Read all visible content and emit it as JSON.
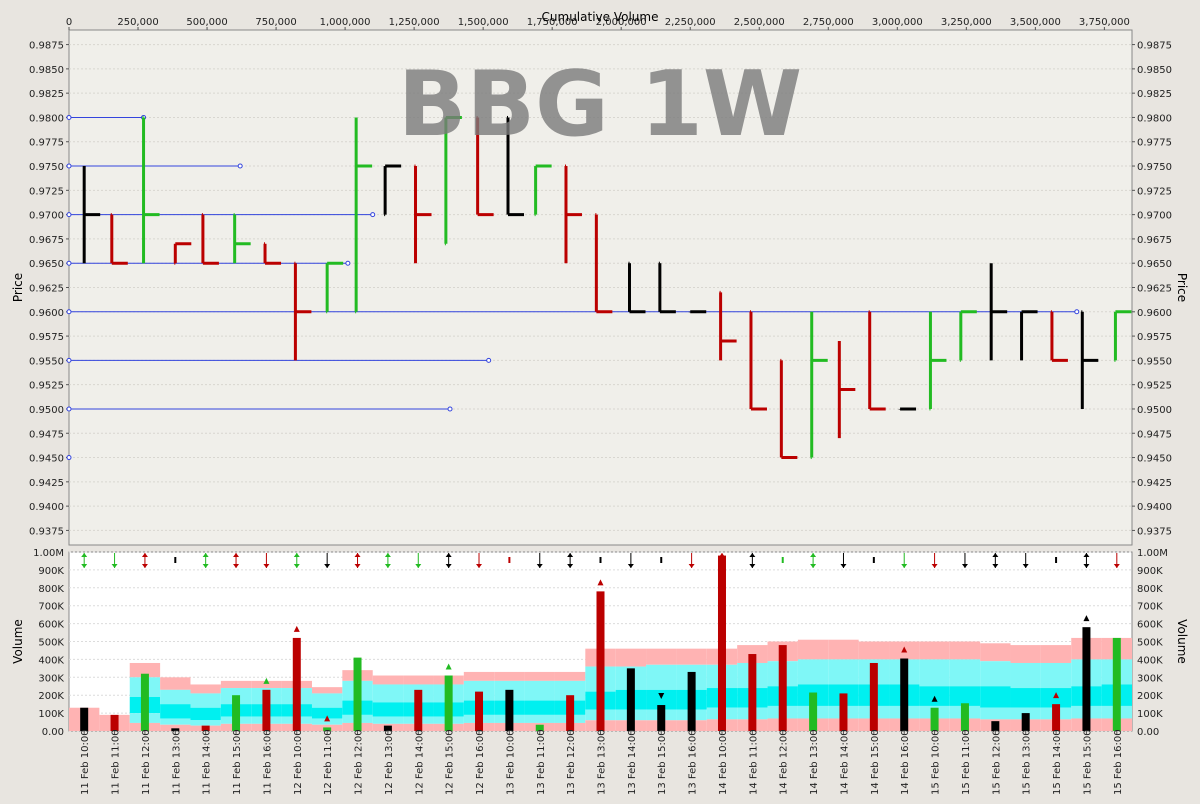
{
  "watermark": "BBG 1W",
  "chart_data": [
    {
      "type": "bar",
      "subtype": "volume-weighted price bars (OHLC-like)",
      "x_axis_label": "Cumulative Volume",
      "x_tick_labels": [
        "0",
        "250,000",
        "500,000",
        "750,000",
        "1,000,000",
        "1,250,000",
        "1,500,000",
        "1,750,000",
        "2,000,000",
        "2,250,000",
        "2,500,000",
        "2,750,000",
        "3,000,000",
        "3,250,000",
        "3,500,000",
        "3,750,000"
      ],
      "y_axis_label": "Price",
      "y_tick_labels": [
        "0.9875",
        "0.9850",
        "0.9825",
        "0.9800",
        "0.9775",
        "0.9750",
        "0.9725",
        "0.9700",
        "0.9675",
        "0.9650",
        "0.9625",
        "0.9600",
        "0.9575",
        "0.9550",
        "0.9525",
        "0.9500",
        "0.9475",
        "0.9450",
        "0.9425",
        "0.9400",
        "0.9375"
      ],
      "ylim": [
        0.936,
        0.989
      ],
      "xlim": [
        0,
        3850000
      ],
      "bars": [
        {
          "x": 55000,
          "low": 0.965,
          "high": 0.975,
          "open": 0.97,
          "close": 0.97,
          "color": "black"
        },
        {
          "x": 155000,
          "low": 0.965,
          "high": 0.97,
          "open": 0.97,
          "close": 0.965,
          "color": "red"
        },
        {
          "x": 270000,
          "low": 0.965,
          "high": 0.98,
          "open": 0.98,
          "close": 0.97,
          "color": "green"
        },
        {
          "x": 385000,
          "low": 0.965,
          "high": 0.967,
          "open": 0.965,
          "close": 0.967,
          "color": "red"
        },
        {
          "x": 485000,
          "low": 0.965,
          "high": 0.97,
          "open": 0.97,
          "close": 0.965,
          "color": "red"
        },
        {
          "x": 600000,
          "low": 0.965,
          "high": 0.97,
          "open": 0.97,
          "close": 0.967,
          "color": "green"
        },
        {
          "x": 710000,
          "low": 0.965,
          "high": 0.967,
          "open": 0.967,
          "close": 0.965,
          "color": "red"
        },
        {
          "x": 820000,
          "low": 0.955,
          "high": 0.965,
          "open": 0.965,
          "close": 0.96,
          "color": "red"
        },
        {
          "x": 935000,
          "low": 0.96,
          "high": 0.965,
          "open": 0.96,
          "close": 0.965,
          "color": "green"
        },
        {
          "x": 1040000,
          "low": 0.96,
          "high": 0.98,
          "open": 0.96,
          "close": 0.975,
          "color": "green"
        },
        {
          "x": 1145000,
          "low": 0.97,
          "high": 0.975,
          "open": 0.97,
          "close": 0.975,
          "color": "black"
        },
        {
          "x": 1255000,
          "low": 0.965,
          "high": 0.975,
          "open": 0.975,
          "close": 0.97,
          "color": "red"
        },
        {
          "x": 1365000,
          "low": 0.967,
          "high": 0.98,
          "open": 0.967,
          "close": 0.98,
          "color": "green"
        },
        {
          "x": 1480000,
          "low": 0.97,
          "high": 0.98,
          "open": 0.98,
          "close": 0.97,
          "color": "red"
        },
        {
          "x": 1590000,
          "low": 0.97,
          "high": 0.98,
          "open": 0.98,
          "close": 0.97,
          "color": "black"
        },
        {
          "x": 1690000,
          "low": 0.97,
          "high": 0.975,
          "open": 0.97,
          "close": 0.975,
          "color": "green"
        },
        {
          "x": 1800000,
          "low": 0.965,
          "high": 0.975,
          "open": 0.975,
          "close": 0.97,
          "color": "red"
        },
        {
          "x": 1910000,
          "low": 0.96,
          "high": 0.97,
          "open": 0.97,
          "close": 0.96,
          "color": "red"
        },
        {
          "x": 2030000,
          "low": 0.96,
          "high": 0.965,
          "open": 0.965,
          "close": 0.96,
          "color": "black"
        },
        {
          "x": 2140000,
          "low": 0.96,
          "high": 0.965,
          "open": 0.965,
          "close": 0.96,
          "color": "black"
        },
        {
          "x": 2250000,
          "low": 0.96,
          "high": 0.96,
          "open": 0.96,
          "close": 0.96,
          "color": "black"
        },
        {
          "x": 2360000,
          "low": 0.955,
          "high": 0.962,
          "open": 0.962,
          "close": 0.957,
          "color": "red"
        },
        {
          "x": 2470000,
          "low": 0.95,
          "high": 0.96,
          "open": 0.96,
          "close": 0.95,
          "color": "red"
        },
        {
          "x": 2580000,
          "low": 0.945,
          "high": 0.955,
          "open": 0.955,
          "close": 0.945,
          "color": "red"
        },
        {
          "x": 2690000,
          "low": 0.945,
          "high": 0.96,
          "open": 0.945,
          "close": 0.955,
          "color": "green"
        },
        {
          "x": 2790000,
          "low": 0.947,
          "high": 0.957,
          "open": 0.952,
          "close": 0.952,
          "color": "red"
        },
        {
          "x": 2900000,
          "low": 0.95,
          "high": 0.96,
          "open": 0.96,
          "close": 0.95,
          "color": "red"
        },
        {
          "x": 3010000,
          "low": 0.95,
          "high": 0.95,
          "open": 0.95,
          "close": 0.95,
          "color": "black"
        },
        {
          "x": 3120000,
          "low": 0.95,
          "high": 0.96,
          "open": 0.95,
          "close": 0.955,
          "color": "green"
        },
        {
          "x": 3230000,
          "low": 0.955,
          "high": 0.96,
          "open": 0.955,
          "close": 0.96,
          "color": "green"
        },
        {
          "x": 3340000,
          "low": 0.955,
          "high": 0.965,
          "open": 0.96,
          "close": 0.96,
          "color": "black"
        },
        {
          "x": 3450000,
          "low": 0.955,
          "high": 0.96,
          "open": 0.96,
          "close": 0.96,
          "color": "black"
        },
        {
          "x": 3560000,
          "low": 0.955,
          "high": 0.96,
          "open": 0.96,
          "close": 0.955,
          "color": "red"
        },
        {
          "x": 3670000,
          "low": 0.95,
          "high": 0.96,
          "open": 0.96,
          "close": 0.955,
          "color": "black"
        },
        {
          "x": 3790000,
          "low": 0.955,
          "high": 0.96,
          "open": 0.955,
          "close": 0.96,
          "color": "green"
        }
      ],
      "reference_lines": [
        {
          "price": 0.98,
          "x_end": 270000
        },
        {
          "price": 0.975,
          "x_end": 620000
        },
        {
          "price": 0.97,
          "x_end": 1100000
        },
        {
          "price": 0.965,
          "x_end": 1010000
        },
        {
          "price": 0.96,
          "x_end": 3650000
        },
        {
          "price": 0.955,
          "x_end": 1520000
        },
        {
          "price": 0.95,
          "x_end": 1380000
        },
        {
          "price": 0.945,
          "x_end": 0
        }
      ]
    },
    {
      "type": "bar",
      "subtype": "volume with percentile bands",
      "y_axis_label": "Volume",
      "y_tick_labels": [
        "1.00M",
        "900K",
        "800K",
        "700K",
        "600K",
        "500K",
        "400K",
        "300K",
        "200K",
        "100K",
        "0.00"
      ],
      "ylim": [
        0,
        1000000
      ],
      "categories": [
        "11 Feb 10:00",
        "11 Feb 11:00",
        "11 Feb 12:00",
        "11 Feb 13:00",
        "11 Feb 14:00",
        "11 Feb 15:00",
        "11 Feb 16:00",
        "12 Feb 10:00",
        "12 Feb 11:00",
        "12 Feb 12:00",
        "12 Feb 13:00",
        "12 Feb 14:00",
        "12 Feb 15:00",
        "12 Feb 16:00",
        "13 Feb 10:00",
        "13 Feb 11:00",
        "13 Feb 12:00",
        "13 Feb 13:00",
        "13 Feb 14:00",
        "13 Feb 15:00",
        "13 Feb 16:00",
        "14 Feb 10:00",
        "14 Feb 11:00",
        "14 Feb 12:00",
        "14 Feb 13:00",
        "14 Feb 14:00",
        "14 Feb 15:00",
        "14 Feb 16:00",
        "15 Feb 10:00",
        "15 Feb 11:00",
        "15 Feb 12:00",
        "15 Feb 13:00",
        "15 Feb 14:00",
        "15 Feb 15:00",
        "15 Feb 16:00"
      ],
      "values": [
        130000,
        90000,
        320000,
        15000,
        30000,
        200000,
        230000,
        520000,
        20000,
        410000,
        30000,
        230000,
        310000,
        220000,
        230000,
        35000,
        200000,
        780000,
        350000,
        145000,
        330000,
        980000,
        430000,
        480000,
        215000,
        210000,
        380000,
        405000,
        130000,
        155000,
        55000,
        100000,
        150000,
        580000,
        520000
      ],
      "colors": [
        "black",
        "red",
        "green",
        "black",
        "red",
        "green",
        "red",
        "red",
        "green",
        "green",
        "black",
        "red",
        "green",
        "red",
        "black",
        "green",
        "red",
        "red",
        "black",
        "black",
        "black",
        "red",
        "red",
        "red",
        "green",
        "red",
        "red",
        "black",
        "green",
        "green",
        "black",
        "black",
        "red",
        "black",
        "green"
      ],
      "bands": {
        "outer_high": [
          130000,
          90000,
          380000,
          300000,
          260000,
          280000,
          280000,
          280000,
          245000,
          340000,
          310000,
          310000,
          310000,
          330000,
          330000,
          330000,
          330000,
          460000,
          460000,
          460000,
          460000,
          460000,
          480000,
          500000,
          510000,
          510000,
          500000,
          500000,
          500000,
          500000,
          490000,
          480000,
          480000,
          520000,
          520000
        ],
        "inner_high": [
          0,
          0,
          300000,
          230000,
          210000,
          240000,
          240000,
          240000,
          210000,
          280000,
          260000,
          260000,
          260000,
          280000,
          280000,
          280000,
          280000,
          360000,
          360000,
          370000,
          370000,
          370000,
          380000,
          390000,
          400000,
          400000,
          400000,
          400000,
          400000,
          400000,
          390000,
          380000,
          380000,
          400000,
          400000
        ],
        "inner_mid": [
          0,
          0,
          190000,
          150000,
          130000,
          150000,
          150000,
          150000,
          130000,
          170000,
          160000,
          160000,
          160000,
          170000,
          170000,
          170000,
          170000,
          220000,
          230000,
          230000,
          230000,
          240000,
          240000,
          250000,
          260000,
          260000,
          260000,
          260000,
          250000,
          250000,
          250000,
          240000,
          240000,
          250000,
          260000
        ],
        "inner_low": [
          0,
          0,
          100000,
          70000,
          60000,
          80000,
          80000,
          80000,
          70000,
          90000,
          80000,
          80000,
          80000,
          90000,
          90000,
          90000,
          90000,
          120000,
          120000,
          120000,
          120000,
          130000,
          130000,
          140000,
          140000,
          140000,
          140000,
          140000,
          140000,
          140000,
          130000,
          130000,
          130000,
          140000,
          140000
        ],
        "outer_low": [
          0,
          0,
          45000,
          35000,
          30000,
          40000,
          40000,
          40000,
          35000,
          45000,
          40000,
          40000,
          40000,
          45000,
          45000,
          45000,
          45000,
          60000,
          60000,
          60000,
          60000,
          65000,
          65000,
          70000,
          70000,
          70000,
          70000,
          70000,
          70000,
          70000,
          65000,
          65000,
          65000,
          70000,
          70000
        ]
      },
      "triangle_markers": [
        {
          "category": "11 Feb 16:00",
          "direction": "up",
          "color": "green"
        },
        {
          "category": "12 Feb 10:00",
          "direction": "up",
          "color": "red"
        },
        {
          "category": "12 Feb 11:00",
          "direction": "up",
          "color": "red"
        },
        {
          "category": "12 Feb 15:00",
          "direction": "up",
          "color": "green"
        },
        {
          "category": "13 Feb 13:00",
          "direction": "up",
          "color": "red"
        },
        {
          "category": "13 Feb 15:00",
          "direction": "down",
          "color": "black"
        },
        {
          "category": "14 Feb 16:00",
          "direction": "up",
          "color": "red"
        },
        {
          "category": "15 Feb 10:00",
          "direction": "up",
          "color": "black"
        },
        {
          "category": "15 Feb 14:00",
          "direction": "up",
          "color": "red"
        },
        {
          "category": "15 Feb 15:00",
          "direction": "up",
          "color": "black"
        }
      ],
      "arrow_markers": [
        "updown",
        "down",
        "updown",
        "dash",
        "updown",
        "updown",
        "down",
        "updown",
        "down",
        "updown",
        "updown",
        "down",
        "updown",
        "down",
        "dash",
        "down",
        "updown",
        "dash",
        "down",
        "dash",
        "down",
        "up",
        "updown",
        "dash",
        "updown",
        "down",
        "dash",
        "down",
        "down",
        "down",
        "updown",
        "down",
        "dash",
        "updown",
        "down"
      ],
      "arrow_colors": [
        "green",
        "green",
        "red",
        "black",
        "green",
        "red",
        "red",
        "green",
        "black",
        "red",
        "green",
        "green",
        "black",
        "red",
        "red",
        "black",
        "black",
        "black",
        "black",
        "black",
        "red",
        "red",
        "black",
        "green",
        "green",
        "black",
        "black",
        "green",
        "red",
        "black",
        "black",
        "black",
        "black",
        "black",
        "red"
      ]
    }
  ]
}
